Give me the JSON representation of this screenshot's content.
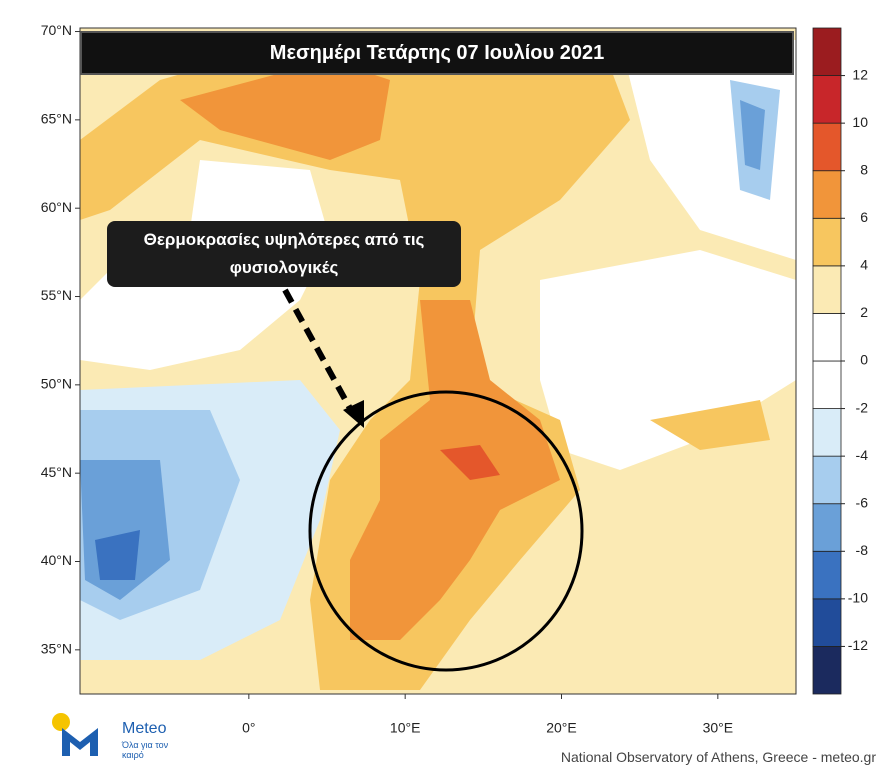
{
  "map": {
    "title": "Μεσημέρι Τετάρτης 07 Ιουλίου 2021",
    "annotation": "Θερμοκρασίες υψηλότερες από τις φυσιολογικές",
    "lat_ticks": [
      {
        "value": 70,
        "label": "70°N"
      },
      {
        "value": 65,
        "label": "65°N"
      },
      {
        "value": 60,
        "label": "60°N"
      },
      {
        "value": 55,
        "label": "55°N"
      },
      {
        "value": 50,
        "label": "50°N"
      },
      {
        "value": 45,
        "label": "45°N"
      },
      {
        "value": 40,
        "label": "40°N"
      },
      {
        "value": 35,
        "label": "35°N"
      }
    ],
    "lon_ticks": [
      {
        "value": 0,
        "label": "0°"
      },
      {
        "value": 10,
        "label": "10°E"
      },
      {
        "value": 20,
        "label": "20°E"
      },
      {
        "value": 30,
        "label": "30°E"
      }
    ],
    "latlim": [
      32.5,
      70.2
    ],
    "lonlim": [
      -10.8,
      35
    ],
    "colorbar": {
      "lim": [
        -14,
        14
      ],
      "ticks": [
        -12,
        -10,
        -8,
        -6,
        -4,
        -2,
        0,
        2,
        4,
        6,
        8,
        10,
        12
      ],
      "colors": [
        "#1b2a5e",
        "#214c9a",
        "#3a72c0",
        "#6aa0d8",
        "#a7cdee",
        "#d9ecf8",
        "#ffffff",
        "#ffffff",
        "#fbeab4",
        "#f7c65f",
        "#f1953a",
        "#e4572b",
        "#c8262a",
        "#9b1c1f"
      ]
    },
    "logo": {
      "name": "Meteo",
      "tagline": "Όλα για τον καιρό"
    },
    "footer": "National Observatory of Athens, Greece - meteo.gr"
  }
}
